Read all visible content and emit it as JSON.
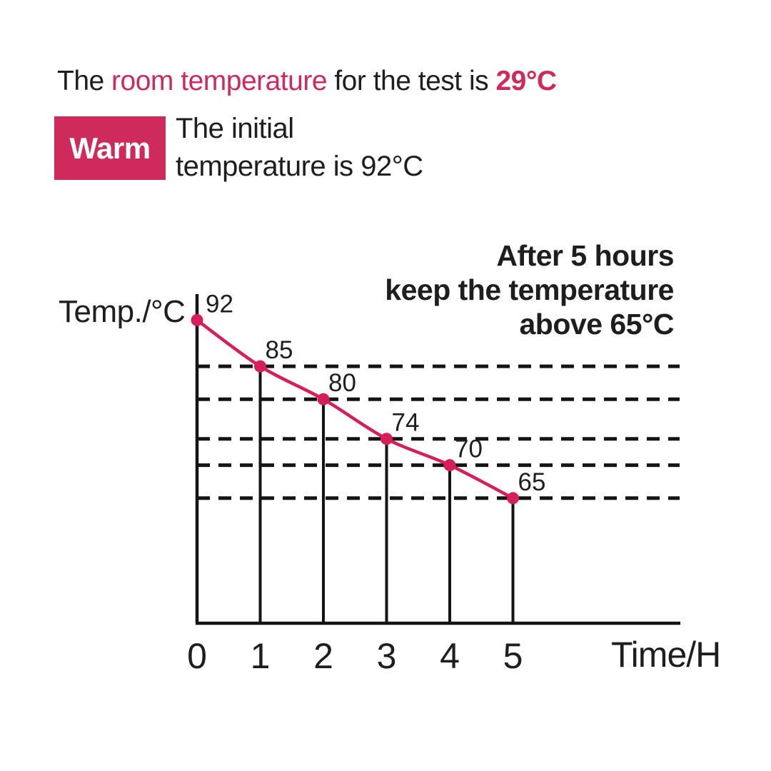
{
  "colors": {
    "accent": "#ce2a5c",
    "line": "#d61e5a",
    "axis": "#141414",
    "text": "#1e1e1e"
  },
  "heading": {
    "part1": "The ",
    "part2": "room temperature",
    "part3": " for the test is ",
    "part4": "29°C"
  },
  "badge": {
    "label": "Warm"
  },
  "initial_note": {
    "line1": "The initial",
    "line2": "temperature is 92°C"
  },
  "annotation": {
    "line1": "After 5 hours",
    "line2": "keep the temperature",
    "line3": "above 65°C"
  },
  "chart_data": {
    "type": "line",
    "x": [
      0,
      1,
      2,
      3,
      4,
      5
    ],
    "values": [
      92,
      85,
      80,
      74,
      70,
      65
    ],
    "point_labels": [
      "92",
      "85",
      "80",
      "74",
      "70",
      "65"
    ],
    "x_tick_labels": [
      "0",
      "1",
      "2",
      "3",
      "4",
      "5"
    ],
    "xlabel": "Time/H",
    "ylabel": "Temp./°C",
    "xlim": [
      0,
      5
    ],
    "dashed_levels": [
      85,
      80,
      74,
      70,
      65
    ],
    "grid": "horizontal dashed lines at each measured temperature level",
    "legend": "none",
    "line_color": "#d61e5a",
    "axis_color": "#141414"
  }
}
